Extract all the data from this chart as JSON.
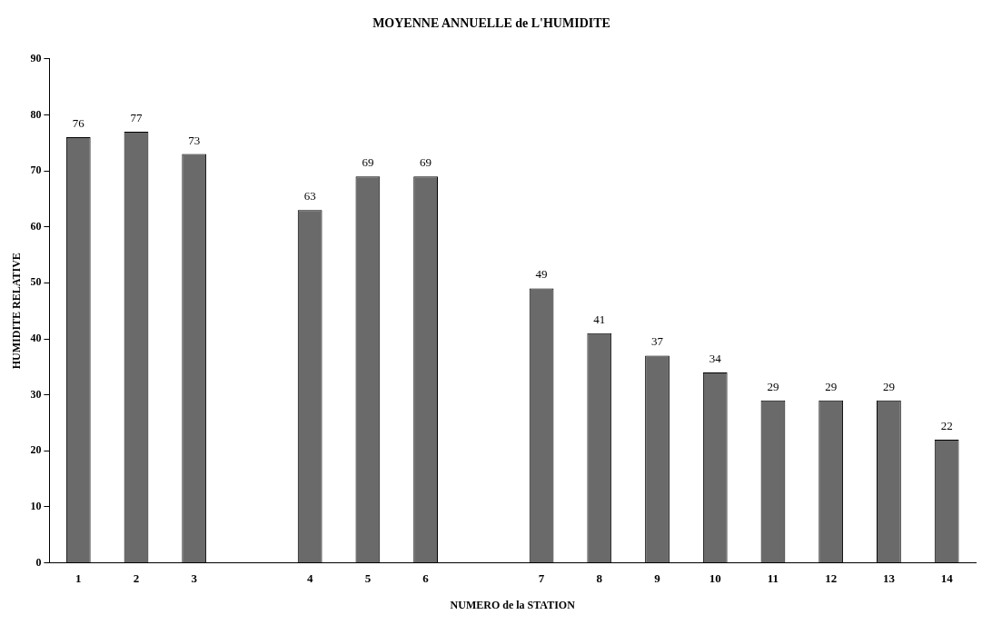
{
  "chart_data": {
    "type": "bar",
    "title": "MOYENNE ANNUELLE de L'HUMIDITE",
    "xlabel": "NUMERO de la STATION",
    "ylabel": "HUMIDITE RELATIVE",
    "categories": [
      "1",
      "2",
      "3",
      null,
      "4",
      "5",
      "6",
      null,
      "7",
      "8",
      "9",
      "10",
      "11",
      "12",
      "13",
      "14"
    ],
    "values": [
      76,
      77,
      73,
      null,
      63,
      69,
      69,
      null,
      49,
      41,
      37,
      34,
      29,
      29,
      29,
      22
    ],
    "color": "#6a6a6a",
    "ylim": [
      0,
      90
    ],
    "yticks": [
      0,
      10,
      20,
      30,
      40,
      50,
      60,
      70,
      80,
      90
    ],
    "grid": false,
    "legend": false,
    "data_labels": true
  }
}
